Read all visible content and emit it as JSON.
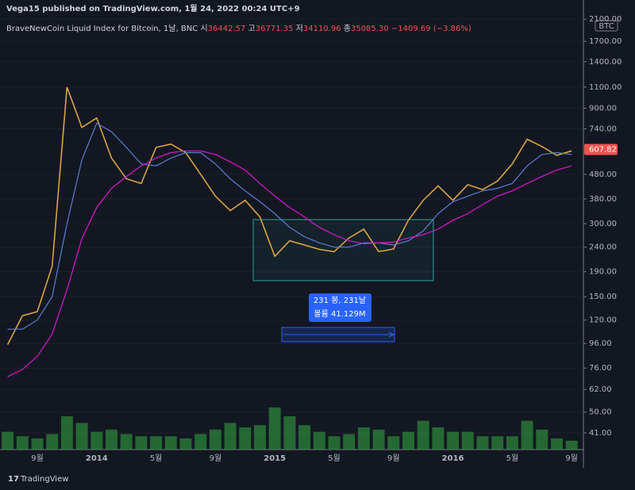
{
  "header": {
    "published": "Vega15 published on TradingView.com, 1월 24, 2022 00:24 UTC+9",
    "symbol": "BraveNewCoin Liquid Index for Bitcoin, 1날, BNC",
    "ohlc": [
      {
        "label": "시",
        "value": "36442.57"
      },
      {
        "label": "고",
        "value": "36771.35"
      },
      {
        "label": "저",
        "value": "34110.96"
      },
      {
        "label": "종",
        "value": "35085.30"
      }
    ],
    "change": "−1409.69 (−3.86%)"
  },
  "chart_data": {
    "type": "line",
    "log_scale": true,
    "unit": "BTC",
    "categories": [
      null,
      null,
      "9월",
      null,
      null,
      null,
      "2014",
      null,
      null,
      null,
      "5월",
      null,
      null,
      null,
      "9월",
      null,
      null,
      null,
      "2015",
      null,
      null,
      null,
      "5월",
      null,
      null,
      null,
      "9월",
      null,
      null,
      null,
      "2016",
      null,
      null,
      null,
      "5월",
      null,
      null,
      null,
      "9월"
    ],
    "series": [
      {
        "color": "#d9a441",
        "values": [
          95,
          125,
          130,
          200,
          1100,
          750,
          820,
          560,
          460,
          440,
          620,
          640,
          590,
          480,
          390,
          340,
          375,
          320,
          220,
          255,
          245,
          235,
          230,
          262,
          285,
          230,
          236,
          310,
          375,
          430,
          375,
          435,
          415,
          450,
          530,
          670,
          625,
          575,
          600
        ]
      },
      {
        "color": "#5b7fd6",
        "values": [
          110,
          110,
          120,
          150,
          300,
          550,
          780,
          720,
          620,
          530,
          520,
          560,
          590,
          590,
          530,
          460,
          410,
          370,
          330,
          290,
          265,
          250,
          240,
          240,
          250,
          250,
          245,
          255,
          280,
          330,
          370,
          390,
          410,
          420,
          440,
          520,
          580,
          590,
          580
        ]
      },
      {
        "color": "#d81bd0",
        "values": [
          70,
          75,
          85,
          105,
          160,
          260,
          350,
          420,
          470,
          520,
          560,
          590,
          600,
          600,
          580,
          540,
          500,
          440,
          390,
          350,
          320,
          290,
          270,
          255,
          248,
          250,
          252,
          262,
          270,
          285,
          310,
          330,
          360,
          390,
          410,
          440,
          470,
          500,
          520
        ]
      }
    ],
    "volume": {
      "color": "#2e8b3a",
      "values": [
        0.8,
        0.6,
        0.5,
        0.7,
        1.5,
        1.2,
        0.8,
        0.9,
        0.7,
        0.6,
        0.6,
        0.6,
        0.5,
        0.7,
        0.9,
        1.2,
        1.0,
        1.1,
        1.9,
        1.5,
        1.1,
        0.8,
        0.6,
        0.7,
        1.0,
        0.9,
        0.6,
        0.8,
        1.3,
        1.0,
        0.8,
        0.8,
        0.6,
        0.6,
        0.6,
        1.3,
        0.9,
        0.5,
        0.4
      ]
    },
    "last_price": {
      "value": 607.82,
      "label": "607.82"
    },
    "ylim": [
      35,
      2200
    ],
    "yticks": [
      {
        "value": 2100,
        "label": "2100.00"
      },
      {
        "value": 1700,
        "label": "1700.00"
      },
      {
        "value": 1400,
        "label": "1400.00"
      },
      {
        "value": 1100,
        "label": "1100.00"
      },
      {
        "value": 900,
        "label": "900.00"
      },
      {
        "value": 740,
        "label": "740.00"
      },
      {
        "value": 480,
        "label": "480.00"
      },
      {
        "value": 380,
        "label": "380.00"
      },
      {
        "value": 300,
        "label": "300.00"
      },
      {
        "value": 240,
        "label": "240.00"
      },
      {
        "value": 190,
        "label": "190.00"
      },
      {
        "value": 150,
        "label": "150.00"
      },
      {
        "value": 120,
        "label": "120.00"
      },
      {
        "value": 96,
        "label": "96.00"
      },
      {
        "value": 76,
        "label": "76.00"
      },
      {
        "value": 62,
        "label": "62.00"
      },
      {
        "value": 50,
        "label": "50.00"
      },
      {
        "value": 41,
        "label": "41.00"
      }
    ],
    "annotations": [
      "231 봉, 231날",
      "볼륨 41.129M"
    ]
  },
  "footer": "TradingView"
}
